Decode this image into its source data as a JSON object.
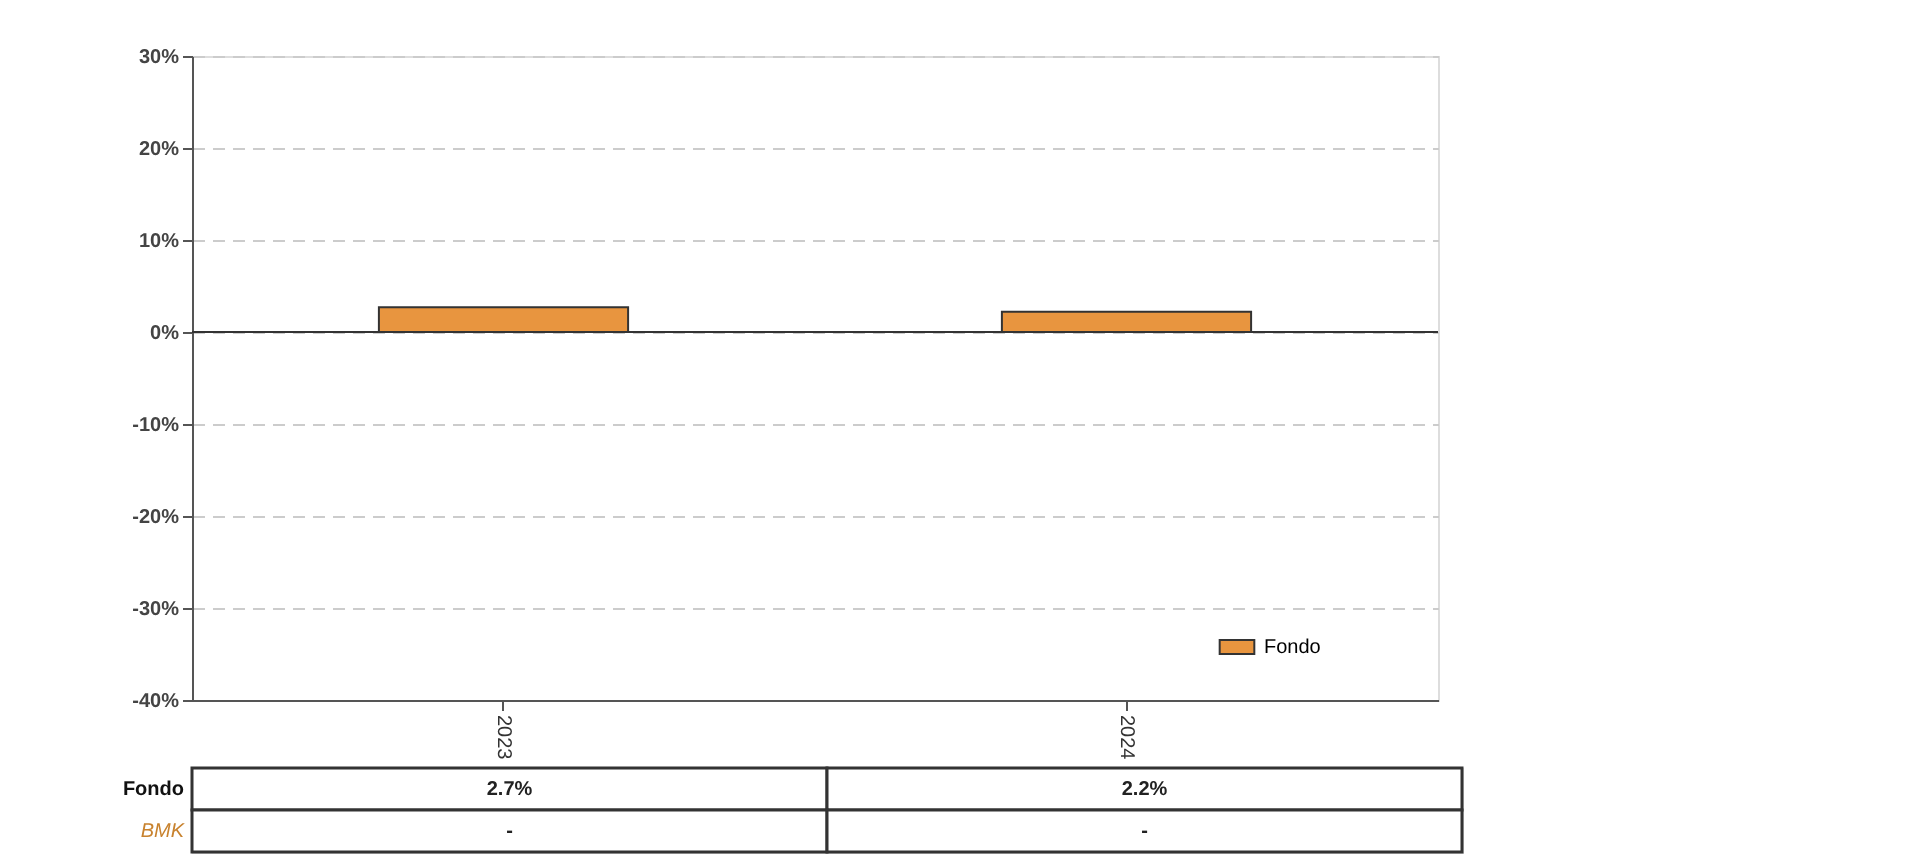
{
  "chart_data": {
    "type": "bar",
    "categories": [
      "2023",
      "2024"
    ],
    "series": [
      {
        "name": "Fondo",
        "color": "#e8953f",
        "values": [
          2.7,
          2.2
        ],
        "value_labels": [
          "2.7%",
          "2.2%"
        ]
      },
      {
        "name": "BMK",
        "color": "#c8822e",
        "values": [
          null,
          null
        ],
        "value_labels": [
          "-",
          "-"
        ]
      }
    ],
    "ylim": [
      -40,
      30
    ],
    "yticks": [
      {
        "value": -40,
        "label": "-40%"
      },
      {
        "value": -30,
        "label": "-30%"
      },
      {
        "value": -20,
        "label": "-20%"
      },
      {
        "value": -10,
        "label": "-10%"
      },
      {
        "value": 0,
        "label": "0%"
      },
      {
        "value": 10,
        "label": "10%"
      },
      {
        "value": 20,
        "label": "20%"
      },
      {
        "value": 30,
        "label": "30%"
      }
    ],
    "ref_lines": [
      {
        "axis": "y",
        "value": 0
      }
    ],
    "grid": "y",
    "legend": "bottom right"
  }
}
